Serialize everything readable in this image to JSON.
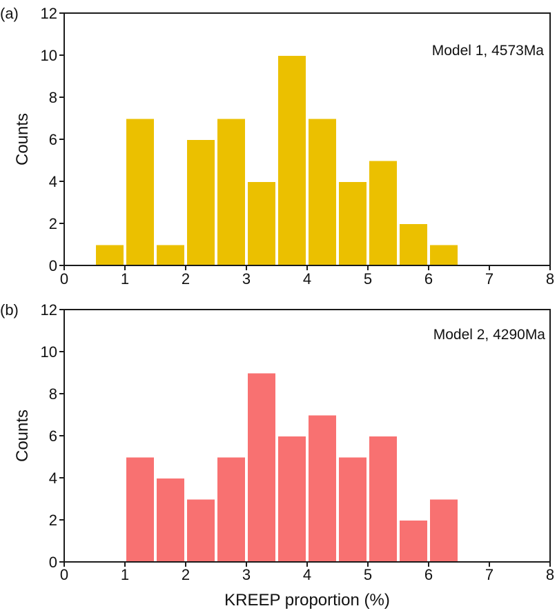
{
  "chart_data": [
    {
      "type": "bar",
      "panel_label": "(a)",
      "annotation": "Model 1, 4573Ma",
      "xlabel": "",
      "ylabel": "Counts",
      "xlim": [
        0,
        8
      ],
      "ylim": [
        0,
        12
      ],
      "xticks": [
        "0",
        "1",
        "2",
        "3",
        "4",
        "5",
        "6",
        "7",
        "8"
      ],
      "yticks": [
        "0",
        "2",
        "4",
        "6",
        "8",
        "10",
        "12"
      ],
      "bin_width": 0.5,
      "bins": [
        {
          "start": 0.5,
          "end": 1.0,
          "count": 1
        },
        {
          "start": 1.0,
          "end": 1.5,
          "count": 7
        },
        {
          "start": 1.5,
          "end": 2.0,
          "count": 1
        },
        {
          "start": 2.0,
          "end": 2.5,
          "count": 6
        },
        {
          "start": 2.5,
          "end": 3.0,
          "count": 7
        },
        {
          "start": 3.0,
          "end": 3.5,
          "count": 4
        },
        {
          "start": 3.5,
          "end": 4.0,
          "count": 10
        },
        {
          "start": 4.0,
          "end": 4.5,
          "count": 7
        },
        {
          "start": 4.5,
          "end": 5.0,
          "count": 4
        },
        {
          "start": 5.0,
          "end": 5.5,
          "count": 5
        },
        {
          "start": 5.5,
          "end": 6.0,
          "count": 2
        },
        {
          "start": 6.0,
          "end": 6.5,
          "count": 1
        }
      ],
      "color": "#EBC000",
      "grid": false
    },
    {
      "type": "bar",
      "panel_label": "(b)",
      "annotation": "Model 2, 4290Ma",
      "xlabel": "KREEP proportion (%)",
      "ylabel": "Counts",
      "xlim": [
        0,
        8
      ],
      "ylim": [
        0,
        12
      ],
      "xticks": [
        "0",
        "1",
        "2",
        "3",
        "4",
        "5",
        "6",
        "7",
        "8"
      ],
      "yticks": [
        "0",
        "2",
        "4",
        "6",
        "8",
        "10",
        "12"
      ],
      "bin_width": 0.5,
      "bins": [
        {
          "start": 1.0,
          "end": 1.5,
          "count": 5
        },
        {
          "start": 1.5,
          "end": 2.0,
          "count": 4
        },
        {
          "start": 2.0,
          "end": 2.5,
          "count": 3
        },
        {
          "start": 2.5,
          "end": 3.0,
          "count": 5
        },
        {
          "start": 3.0,
          "end": 3.5,
          "count": 9
        },
        {
          "start": 3.5,
          "end": 4.0,
          "count": 6
        },
        {
          "start": 4.0,
          "end": 4.5,
          "count": 7
        },
        {
          "start": 4.5,
          "end": 5.0,
          "count": 5
        },
        {
          "start": 5.0,
          "end": 5.5,
          "count": 6
        },
        {
          "start": 5.5,
          "end": 6.0,
          "count": 2
        },
        {
          "start": 6.0,
          "end": 6.5,
          "count": 3
        }
      ],
      "color": "#F87171",
      "grid": false
    }
  ]
}
